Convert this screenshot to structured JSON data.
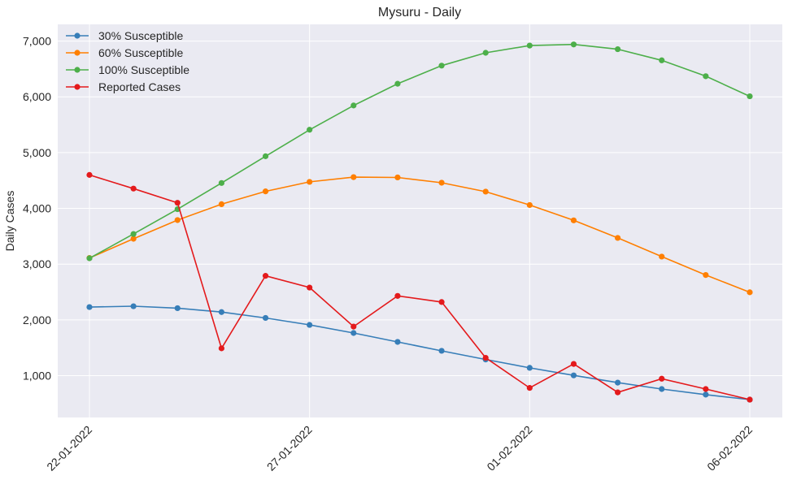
{
  "chart_data": {
    "type": "line",
    "title": "Mysuru - Daily",
    "xlabel": "",
    "ylabel": "Daily Cases",
    "x": [
      "22-01-2022",
      "23-01-2022",
      "24-01-2022",
      "25-01-2022",
      "26-01-2022",
      "27-01-2022",
      "28-01-2022",
      "29-01-2022",
      "30-01-2022",
      "31-01-2022",
      "01-02-2022",
      "02-02-2022",
      "03-02-2022",
      "04-02-2022",
      "05-02-2022",
      "06-02-2022"
    ],
    "x_ticks": [
      "22-01-2022",
      "27-01-2022",
      "01-02-2022",
      "06-02-2022"
    ],
    "ylim": [
      250,
      7300
    ],
    "y_ticks": [
      1000,
      2000,
      3000,
      4000,
      5000,
      6000,
      7000
    ],
    "y_tick_labels": [
      "1,000",
      "2,000",
      "3,000",
      "4,000",
      "5,000",
      "6,000",
      "7,000"
    ],
    "grid": true,
    "legend_position": "top-left",
    "series": [
      {
        "name": "30% Susceptible",
        "color": "#377eb8",
        "values": [
          2230,
          2245,
          2210,
          2140,
          2035,
          1910,
          1765,
          1605,
          1445,
          1290,
          1140,
          1005,
          875,
          760,
          660,
          570
        ]
      },
      {
        "name": "60% Susceptible",
        "color": "#ff7f00",
        "values": [
          3110,
          3455,
          3790,
          4075,
          4305,
          4475,
          4560,
          4555,
          4460,
          4300,
          4060,
          3785,
          3470,
          3135,
          2805,
          2495
        ]
      },
      {
        "name": "100% Susceptible",
        "color": "#4daf4a",
        "values": [
          3105,
          3540,
          3985,
          4455,
          4935,
          5410,
          5845,
          6235,
          6560,
          6790,
          6920,
          6940,
          6855,
          6655,
          6370,
          6010
        ]
      },
      {
        "name": "Reported Cases",
        "color": "#e41a1c",
        "values": [
          4600,
          4355,
          4100,
          1490,
          2790,
          2580,
          1880,
          2430,
          2320,
          1320,
          780,
          1210,
          700,
          945,
          760,
          570
        ]
      }
    ]
  }
}
